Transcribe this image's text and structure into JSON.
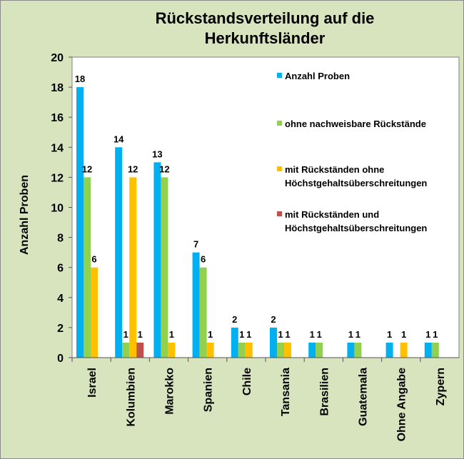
{
  "chart_data": {
    "type": "bar",
    "title_lines": [
      "Rückstandsverteilung auf die",
      "Herkunftsländer"
    ],
    "ylabel": "Anzahl Proben",
    "xlabel": "",
    "ylim": [
      0,
      20
    ],
    "yticks": [
      0,
      2,
      4,
      6,
      8,
      10,
      12,
      14,
      16,
      18,
      20
    ],
    "categories": [
      "Israel",
      "Kolumbien",
      "Marokko",
      "Spanien",
      "Chile",
      "Tansania",
      "Brasilien",
      "Guatemala",
      "Ohne Angabe",
      "Zypern"
    ],
    "series": [
      {
        "name": "Anzahl Proben",
        "color": "#00b0f0",
        "values": [
          18,
          14,
          13,
          7,
          2,
          2,
          1,
          1,
          1,
          1
        ]
      },
      {
        "name": "ohne nachweisbare Rückstände",
        "color": "#92d050",
        "values": [
          12,
          1,
          12,
          6,
          1,
          1,
          1,
          1,
          0,
          1
        ]
      },
      {
        "name": "mit Rückständen ohne Höchstgehaltsüberschreitungen",
        "color": "#ffc000",
        "values": [
          6,
          12,
          1,
          1,
          1,
          1,
          0,
          0,
          1,
          0
        ]
      },
      {
        "name": "mit Rückständen und Höchstgehaltsüberschreitungen",
        "color": "#c0504d",
        "values": [
          0,
          1,
          0,
          0,
          0,
          0,
          0,
          0,
          0,
          0
        ]
      }
    ],
    "legend_lines": [
      [
        "Anzahl Proben"
      ],
      [
        "ohne nachweisbare Rückstände"
      ],
      [
        "mit Rückständen ohne",
        "Höchstgehaltsüberschreitungen"
      ],
      [
        "mit Rückständen und",
        "Höchstgehaltsüberschreitungen"
      ]
    ],
    "legend_position": "right",
    "grid": false
  }
}
